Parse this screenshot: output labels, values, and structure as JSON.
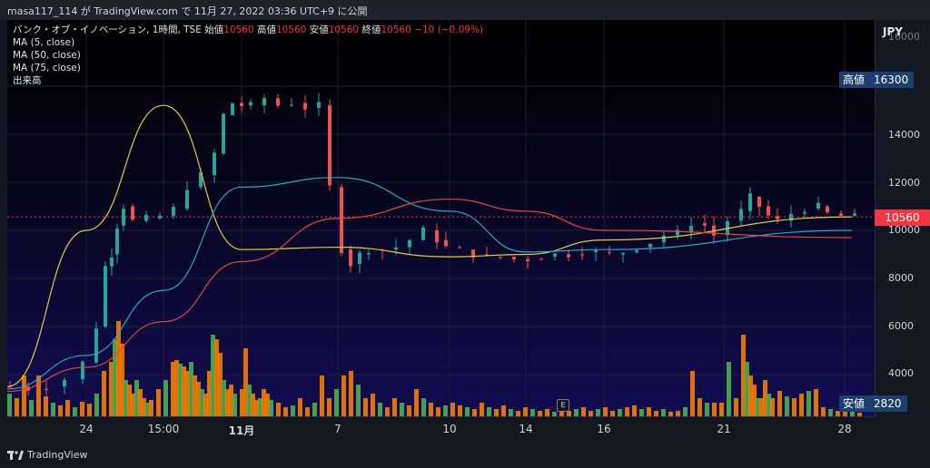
{
  "header": {
    "caption": "masa117_114 が TradingView.com で 11月 27, 2022 03:36 UTC+9 に公開"
  },
  "legend": {
    "symbol_line": "バンク・オブ・イノベーション, 1時間, TSE",
    "open_label": "始値",
    "open_value": "10560",
    "high_label": "高値",
    "high_value": "10560",
    "low_label": "安値",
    "low_value": "10560",
    "close_label": "終値",
    "close_value": "10560",
    "change": "−10 (−0.09%)",
    "indicators": [
      "MA (5, close)",
      "MA (50, close)",
      "MA (75, close)",
      "出来高"
    ]
  },
  "price_scale": {
    "currency": "JPY",
    "ticks": [
      "16000",
      "14000",
      "12000",
      "10000",
      "8000",
      "6000",
      "4000"
    ],
    "high_tag": {
      "label": "高値",
      "value": "16300"
    },
    "low_tag": {
      "label": "安値",
      "value": "2820"
    },
    "last_price": "10560"
  },
  "time_scale": {
    "labels": [
      "24",
      "15:00",
      "11月",
      "7",
      "10",
      "14",
      "16",
      "21",
      "28"
    ]
  },
  "event_marker": "E",
  "footer": {
    "brand": "TradingView"
  },
  "colors": {
    "up": "#26a69a",
    "down": "#ef5350",
    "ma5": "#e6c84a",
    "ma50": "#2aa7c7",
    "ma75": "#e04848",
    "volume_up": "#4caf50",
    "volume_down": "#f57c00"
  },
  "chart_data": {
    "type": "line",
    "ylim": [
      2820,
      16300
    ],
    "x": [
      "24",
      "15:00",
      "11月",
      "7",
      "10",
      "14",
      "16",
      "21",
      "28"
    ],
    "series": [
      {
        "name": "MA (5, close)",
        "values": [
          3500,
          10000,
          15200,
          9200,
          9300,
          8900,
          9000,
          9600,
          10560
        ]
      },
      {
        "name": "MA (50, close)",
        "values": [
          3400,
          4800,
          7500,
          11800,
          12200,
          10800,
          9100,
          9200,
          10000
        ]
      },
      {
        "name": "MA (75, close)",
        "values": [
          3300,
          4300,
          6200,
          8700,
          10500,
          11300,
          10800,
          10000,
          9700
        ]
      }
    ]
  }
}
